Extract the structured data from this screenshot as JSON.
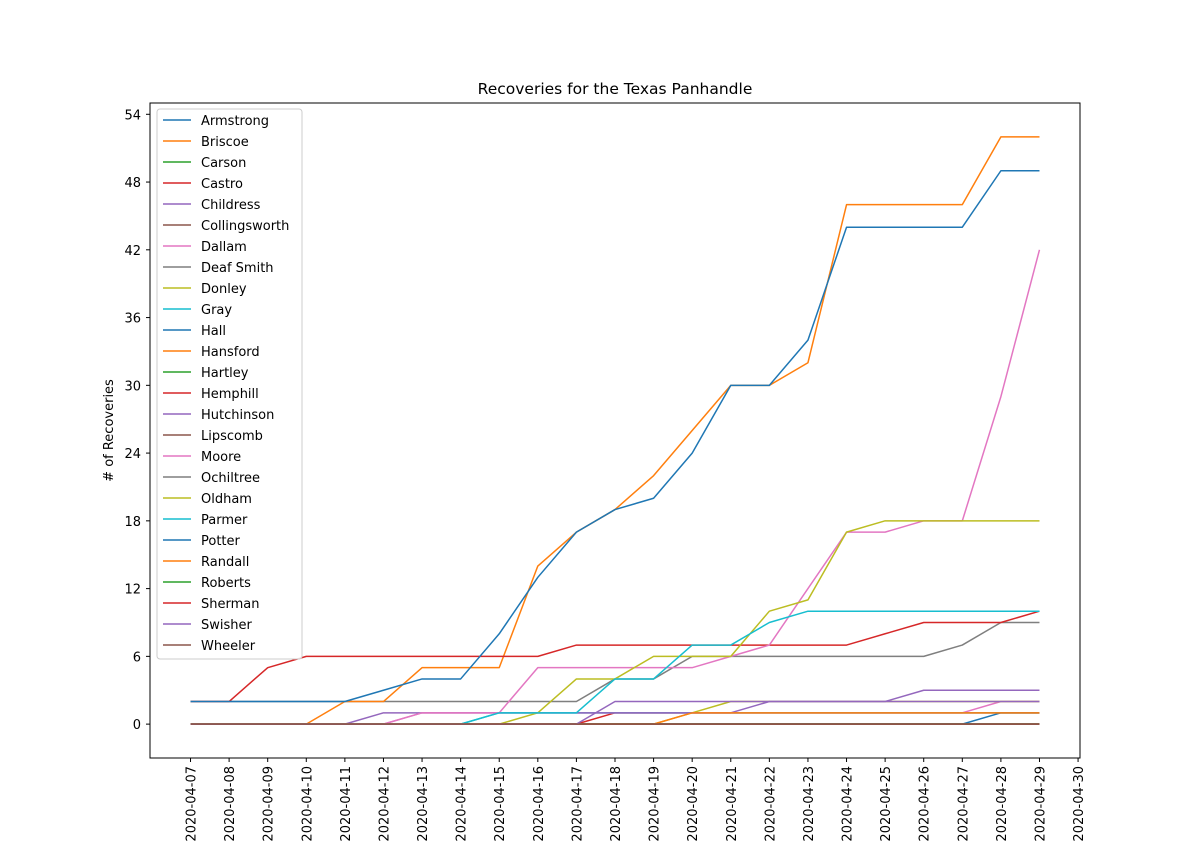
{
  "chart_data": {
    "type": "line",
    "title": "Recoveries for the Texas Panhandle",
    "xlabel": "",
    "ylabel": "# of Recoveries",
    "ylim": [
      -3,
      55
    ],
    "yticks": [
      0,
      6,
      12,
      18,
      24,
      30,
      36,
      42,
      48,
      54
    ],
    "x_tick_labels": [
      "2020-04-07",
      "2020-04-08",
      "2020-04-09",
      "2020-04-10",
      "2020-04-11",
      "2020-04-12",
      "2020-04-13",
      "2020-04-14",
      "2020-04-15",
      "2020-04-16",
      "2020-04-17",
      "2020-04-18",
      "2020-04-19",
      "2020-04-20",
      "2020-04-21",
      "2020-04-22",
      "2020-04-23",
      "2020-04-24",
      "2020-04-25",
      "2020-04-26",
      "2020-04-27",
      "2020-04-28",
      "2020-04-29",
      "2020-04-30"
    ],
    "x": [
      "2020-04-07",
      "2020-04-08",
      "2020-04-09",
      "2020-04-10",
      "2020-04-11",
      "2020-04-12",
      "2020-04-13",
      "2020-04-14",
      "2020-04-15",
      "2020-04-16",
      "2020-04-17",
      "2020-04-18",
      "2020-04-19",
      "2020-04-20",
      "2020-04-21",
      "2020-04-22",
      "2020-04-23",
      "2020-04-24",
      "2020-04-25",
      "2020-04-26",
      "2020-04-27",
      "2020-04-28",
      "2020-04-29"
    ],
    "grid": false,
    "legend_position": "upper-left",
    "series": [
      {
        "name": "Armstrong",
        "color": "#1f77b4",
        "values": [
          0,
          0,
          0,
          0,
          0,
          0,
          0,
          0,
          0,
          0,
          0,
          0,
          0,
          0,
          0,
          0,
          0,
          0,
          0,
          0,
          0,
          0,
          0
        ]
      },
      {
        "name": "Briscoe",
        "color": "#ff7f0e",
        "values": [
          0,
          0,
          0,
          0,
          0,
          0,
          0,
          0,
          0,
          0,
          0,
          0,
          0,
          0,
          0,
          0,
          0,
          0,
          0,
          0,
          0,
          0,
          0
        ]
      },
      {
        "name": "Carson",
        "color": "#2ca02c",
        "values": [
          0,
          0,
          0,
          0,
          0,
          0,
          0,
          0,
          0,
          0,
          0,
          0,
          0,
          0,
          0,
          0,
          0,
          0,
          0,
          0,
          0,
          0,
          0
        ]
      },
      {
        "name": "Castro",
        "color": "#d62728",
        "values": [
          0,
          0,
          0,
          0,
          0,
          0,
          0,
          0,
          0,
          0,
          0,
          1,
          1,
          1,
          1,
          1,
          1,
          1,
          1,
          1,
          1,
          1,
          1
        ]
      },
      {
        "name": "Childress",
        "color": "#9467bd",
        "values": [
          0,
          0,
          0,
          0,
          0,
          0,
          0,
          0,
          0,
          0,
          0,
          0,
          0,
          0,
          0,
          0,
          0,
          0,
          0,
          0,
          0,
          0,
          0
        ]
      },
      {
        "name": "Collingsworth",
        "color": "#8c564b",
        "values": [
          0,
          0,
          0,
          0,
          0,
          0,
          0,
          0,
          0,
          0,
          0,
          0,
          0,
          0,
          0,
          0,
          0,
          0,
          0,
          0,
          0,
          0,
          0
        ]
      },
      {
        "name": "Dallam",
        "color": "#e377c2",
        "values": [
          0,
          0,
          0,
          0,
          0,
          0,
          1,
          1,
          1,
          1,
          1,
          1,
          1,
          1,
          1,
          1,
          1,
          1,
          1,
          1,
          1,
          2,
          2
        ]
      },
      {
        "name": "Deaf Smith",
        "color": "#7f7f7f",
        "values": [
          2,
          2,
          2,
          2,
          2,
          2,
          2,
          2,
          2,
          2,
          2,
          4,
          4,
          6,
          6,
          6,
          6,
          6,
          6,
          6,
          7,
          9,
          9
        ]
      },
      {
        "name": "Donley",
        "color": "#bcbd22",
        "values": [
          0,
          0,
          0,
          0,
          0,
          0,
          0,
          0,
          0,
          0,
          0,
          0,
          0,
          1,
          2,
          2,
          2,
          2,
          2,
          2,
          2,
          2,
          2
        ]
      },
      {
        "name": "Gray",
        "color": "#17becf",
        "values": [
          0,
          0,
          0,
          0,
          0,
          0,
          0,
          0,
          1,
          1,
          1,
          1,
          1,
          1,
          1,
          1,
          1,
          1,
          1,
          1,
          1,
          1,
          1
        ]
      },
      {
        "name": "Hall",
        "color": "#1f77b4",
        "values": [
          0,
          0,
          0,
          0,
          0,
          0,
          0,
          0,
          0,
          0,
          0,
          0,
          0,
          0,
          0,
          0,
          0,
          0,
          0,
          0,
          0,
          1,
          1
        ]
      },
      {
        "name": "Hansford",
        "color": "#ff7f0e",
        "values": [
          0,
          0,
          0,
          0,
          2,
          2,
          5,
          5,
          5,
          14,
          17,
          19,
          22,
          26,
          30,
          30,
          32,
          46,
          46,
          46,
          46,
          52,
          52
        ]
      },
      {
        "name": "Hartley",
        "color": "#2ca02c",
        "values": [
          0,
          0,
          0,
          0,
          0,
          0,
          0,
          0,
          0,
          0,
          0,
          0,
          0,
          0,
          0,
          0,
          0,
          0,
          0,
          0,
          0,
          0,
          0
        ]
      },
      {
        "name": "Hemphill",
        "color": "#d62728",
        "values": [
          2,
          2,
          5,
          6,
          6,
          6,
          6,
          6,
          6,
          6,
          7,
          7,
          7,
          7,
          7,
          7,
          7,
          7,
          8,
          9,
          9,
          9,
          10
        ]
      },
      {
        "name": "Hutchinson",
        "color": "#9467bd",
        "values": [
          0,
          0,
          0,
          0,
          0,
          1,
          1,
          1,
          1,
          1,
          1,
          1,
          1,
          1,
          1,
          2,
          2,
          2,
          2,
          3,
          3,
          3,
          3
        ]
      },
      {
        "name": "Lipscomb",
        "color": "#8c564b",
        "values": [
          0,
          0,
          0,
          0,
          0,
          0,
          0,
          0,
          0,
          0,
          0,
          0,
          0,
          0,
          0,
          0,
          0,
          0,
          0,
          0,
          0,
          0,
          0
        ]
      },
      {
        "name": "Moore",
        "color": "#e377c2",
        "values": [
          0,
          0,
          0,
          0,
          0,
          0,
          1,
          1,
          1,
          5,
          5,
          5,
          5,
          5,
          6,
          7,
          12,
          17,
          17,
          18,
          18,
          29,
          42
        ]
      },
      {
        "name": "Ochiltree",
        "color": "#7f7f7f",
        "values": [
          0,
          0,
          0,
          0,
          0,
          0,
          0,
          0,
          0,
          0,
          0,
          0,
          0,
          0,
          0,
          0,
          0,
          0,
          0,
          0,
          0,
          0,
          0
        ]
      },
      {
        "name": "Oldham",
        "color": "#bcbd22",
        "values": [
          0,
          0,
          0,
          0,
          0,
          0,
          0,
          0,
          0,
          1,
          4,
          4,
          6,
          6,
          6,
          10,
          11,
          17,
          18,
          18,
          18,
          18,
          18
        ]
      },
      {
        "name": "Parmer",
        "color": "#17becf",
        "values": [
          0,
          0,
          0,
          0,
          0,
          0,
          0,
          0,
          1,
          1,
          1,
          4,
          4,
          7,
          7,
          9,
          10,
          10,
          10,
          10,
          10,
          10,
          10
        ]
      },
      {
        "name": "Potter",
        "color": "#1f77b4",
        "values": [
          2,
          2,
          2,
          2,
          2,
          3,
          4,
          4,
          8,
          13,
          17,
          19,
          20,
          24,
          30,
          30,
          34,
          44,
          44,
          44,
          44,
          49,
          49
        ]
      },
      {
        "name": "Randall",
        "color": "#ff7f0e",
        "values": [
          0,
          0,
          0,
          0,
          0,
          0,
          0,
          0,
          0,
          0,
          0,
          0,
          0,
          1,
          1,
          1,
          1,
          1,
          1,
          1,
          1,
          1,
          1
        ]
      },
      {
        "name": "Roberts",
        "color": "#2ca02c",
        "values": [
          0,
          0,
          0,
          0,
          0,
          0,
          0,
          0,
          0,
          0,
          0,
          0,
          0,
          0,
          0,
          0,
          0,
          0,
          0,
          0,
          0,
          0,
          0
        ]
      },
      {
        "name": "Sherman",
        "color": "#d62728",
        "values": [
          0,
          0,
          0,
          0,
          0,
          0,
          0,
          0,
          0,
          0,
          0,
          0,
          0,
          0,
          0,
          0,
          0,
          0,
          0,
          0,
          0,
          0,
          0
        ]
      },
      {
        "name": "Swisher",
        "color": "#9467bd",
        "values": [
          0,
          0,
          0,
          0,
          0,
          0,
          0,
          0,
          0,
          0,
          0,
          2,
          2,
          2,
          2,
          2,
          2,
          2,
          2,
          2,
          2,
          2,
          2
        ]
      },
      {
        "name": "Wheeler",
        "color": "#8c564b",
        "values": [
          0,
          0,
          0,
          0,
          0,
          0,
          0,
          0,
          0,
          0,
          0,
          0,
          0,
          0,
          0,
          0,
          0,
          0,
          0,
          0,
          0,
          0,
          0
        ]
      }
    ]
  }
}
